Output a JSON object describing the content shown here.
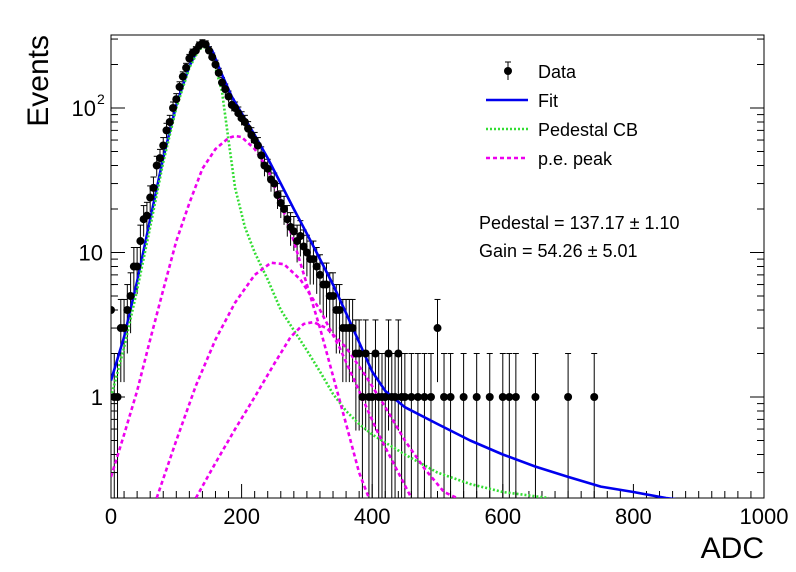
{
  "chart_data": {
    "type": "scatter",
    "title": "",
    "xlabel": "ADC",
    "ylabel": "Events",
    "xlim": [
      0,
      1000
    ],
    "ylim": [
      0.2,
      320
    ],
    "yscale": "log",
    "grid": false,
    "legend_position": "top-right",
    "x_ticks": [
      "0",
      "200",
      "400",
      "600",
      "800",
      "1000"
    ],
    "y_ticks": [
      {
        "value": 1,
        "label": "1"
      },
      {
        "value": 10,
        "label": "10"
      },
      {
        "value": 100,
        "label": "10",
        "sup": "2"
      }
    ],
    "legend": [
      {
        "label": "Data",
        "style": "marker",
        "color": "#000000"
      },
      {
        "label": "Fit",
        "style": "solid",
        "color": "#0000ee"
      },
      {
        "label": "Pedestal CB",
        "style": "dotted",
        "color": "#33dd33"
      },
      {
        "label": "p.e. peak",
        "style": "dashed",
        "color": "#ee00ee"
      }
    ],
    "annotations": [
      "Pedestal = 137.17 ± 1.10",
      "Gain = 54.26 ± 5.01"
    ],
    "fit_params": {
      "pedestal": 137.17,
      "pedestal_err": 1.1,
      "gain": 54.26,
      "gain_err": 5.01
    },
    "series": [
      {
        "name": "Data",
        "points": [
          [
            0,
            4
          ],
          [
            5,
            1
          ],
          [
            10,
            1
          ],
          [
            15,
            3
          ],
          [
            20,
            3
          ],
          [
            25,
            4
          ],
          [
            30,
            5
          ],
          [
            35,
            8
          ],
          [
            40,
            8
          ],
          [
            45,
            12
          ],
          [
            50,
            17
          ],
          [
            55,
            18
          ],
          [
            60,
            24
          ],
          [
            65,
            28
          ],
          [
            70,
            40
          ],
          [
            75,
            45
          ],
          [
            80,
            55
          ],
          [
            85,
            70
          ],
          [
            90,
            80
          ],
          [
            95,
            100
          ],
          [
            100,
            115
          ],
          [
            105,
            140
          ],
          [
            110,
            165
          ],
          [
            115,
            190
          ],
          [
            120,
            220
          ],
          [
            125,
            240
          ],
          [
            130,
            250
          ],
          [
            135,
            270
          ],
          [
            140,
            280
          ],
          [
            145,
            275
          ],
          [
            150,
            250
          ],
          [
            155,
            225
          ],
          [
            160,
            200
          ],
          [
            165,
            175
          ],
          [
            170,
            150
          ],
          [
            175,
            135
          ],
          [
            180,
            120
          ],
          [
            185,
            105
          ],
          [
            190,
            100
          ],
          [
            195,
            92
          ],
          [
            200,
            85
          ],
          [
            205,
            80
          ],
          [
            210,
            72
          ],
          [
            215,
            65
          ],
          [
            220,
            60
          ],
          [
            225,
            55
          ],
          [
            230,
            47
          ],
          [
            235,
            40
          ],
          [
            240,
            38
          ],
          [
            245,
            32
          ],
          [
            250,
            30
          ],
          [
            255,
            25
          ],
          [
            260,
            22
          ],
          [
            265,
            20
          ],
          [
            270,
            17
          ],
          [
            275,
            15
          ],
          [
            280,
            14
          ],
          [
            285,
            12
          ],
          [
            290,
            13
          ],
          [
            295,
            11
          ],
          [
            300,
            10
          ],
          [
            305,
            9
          ],
          [
            310,
            9
          ],
          [
            315,
            8
          ],
          [
            320,
            7
          ],
          [
            325,
            6
          ],
          [
            330,
            6
          ],
          [
            335,
            5
          ],
          [
            340,
            5
          ],
          [
            345,
            4
          ],
          [
            350,
            4
          ],
          [
            355,
            3
          ],
          [
            360,
            3
          ],
          [
            365,
            3
          ],
          [
            370,
            3
          ],
          [
            375,
            2
          ],
          [
            380,
            2
          ],
          [
            385,
            1
          ],
          [
            390,
            2
          ],
          [
            395,
            1
          ],
          [
            400,
            1
          ],
          [
            405,
            2
          ],
          [
            410,
            1
          ],
          [
            415,
            1
          ],
          [
            420,
            1
          ],
          [
            425,
            2
          ],
          [
            430,
            1
          ],
          [
            435,
            1
          ],
          [
            440,
            2
          ],
          [
            445,
            1
          ],
          [
            450,
            1
          ],
          [
            460,
            1
          ],
          [
            470,
            1
          ],
          [
            480,
            1
          ],
          [
            490,
            1
          ],
          [
            500,
            3
          ],
          [
            510,
            1
          ],
          [
            520,
            1
          ],
          [
            540,
            1
          ],
          [
            560,
            1
          ],
          [
            580,
            1
          ],
          [
            600,
            1
          ],
          [
            610,
            1
          ],
          [
            620,
            1
          ],
          [
            650,
            1
          ],
          [
            700,
            1
          ],
          [
            740,
            1
          ]
        ]
      },
      {
        "name": "Fit",
        "points": [
          [
            0,
            1.3
          ],
          [
            20,
            2.6
          ],
          [
            40,
            6.3
          ],
          [
            60,
            17
          ],
          [
            80,
            45
          ],
          [
            100,
            105
          ],
          [
            120,
            195
          ],
          [
            135,
            265
          ],
          [
            145,
            280
          ],
          [
            155,
            250
          ],
          [
            170,
            170
          ],
          [
            185,
            120
          ],
          [
            200,
            92
          ],
          [
            220,
            65
          ],
          [
            240,
            45
          ],
          [
            260,
            30
          ],
          [
            280,
            20
          ],
          [
            300,
            13.5
          ],
          [
            320,
            9
          ],
          [
            340,
            6
          ],
          [
            360,
            3.8
          ],
          [
            380,
            2.4
          ],
          [
            400,
            1.5
          ],
          [
            420,
            1.1
          ],
          [
            450,
            0.85
          ],
          [
            500,
            0.65
          ],
          [
            550,
            0.5
          ],
          [
            600,
            0.4
          ],
          [
            650,
            0.33
          ],
          [
            700,
            0.28
          ],
          [
            750,
            0.24
          ],
          [
            800,
            0.22
          ],
          [
            850,
            0.2
          ],
          [
            870,
            0.195
          ]
        ]
      },
      {
        "name": "Pedestal CB",
        "points": [
          [
            0,
            1.0
          ],
          [
            20,
            2.2
          ],
          [
            40,
            5.5
          ],
          [
            60,
            15
          ],
          [
            80,
            42
          ],
          [
            100,
            100
          ],
          [
            120,
            190
          ],
          [
            135,
            255
          ],
          [
            145,
            265
          ],
          [
            155,
            230
          ],
          [
            170,
            130
          ],
          [
            180,
            60
          ],
          [
            190,
            28
          ],
          [
            205,
            15
          ],
          [
            220,
            10
          ],
          [
            240,
            6.5
          ],
          [
            260,
            4
          ],
          [
            280,
            2.9
          ],
          [
            300,
            2.1
          ],
          [
            320,
            1.5
          ],
          [
            340,
            1.05
          ],
          [
            360,
            0.8
          ],
          [
            380,
            0.65
          ],
          [
            400,
            0.55
          ],
          [
            450,
            0.4
          ],
          [
            500,
            0.3
          ],
          [
            550,
            0.25
          ],
          [
            600,
            0.22
          ],
          [
            670,
            0.2
          ]
        ]
      },
      {
        "name": "p.e. peak 1",
        "points": [
          [
            0,
            0.28
          ],
          [
            20,
            0.55
          ],
          [
            40,
            1.1
          ],
          [
            60,
            2.5
          ],
          [
            80,
            5.5
          ],
          [
            100,
            12
          ],
          [
            120,
            22
          ],
          [
            140,
            38
          ],
          [
            160,
            52
          ],
          [
            180,
            62
          ],
          [
            190,
            64
          ],
          [
            200,
            63
          ],
          [
            220,
            52
          ],
          [
            240,
            38
          ],
          [
            260,
            22
          ],
          [
            280,
            12
          ],
          [
            300,
            6
          ],
          [
            320,
            3
          ],
          [
            340,
            1.4
          ],
          [
            360,
            0.65
          ],
          [
            380,
            0.3
          ],
          [
            395,
            0.2
          ]
        ]
      },
      {
        "name": "p.e. peak 2",
        "points": [
          [
            70,
            0.2
          ],
          [
            100,
            0.5
          ],
          [
            130,
            1.2
          ],
          [
            160,
            2.5
          ],
          [
            190,
            4.5
          ],
          [
            220,
            7
          ],
          [
            245,
            8.5
          ],
          [
            265,
            8.3
          ],
          [
            290,
            6.5
          ],
          [
            320,
            4
          ],
          [
            350,
            2.2
          ],
          [
            380,
            1.1
          ],
          [
            410,
            0.55
          ],
          [
            440,
            0.3
          ],
          [
            460,
            0.2
          ]
        ]
      },
      {
        "name": "p.e. peak 3",
        "points": [
          [
            130,
            0.2
          ],
          [
            160,
            0.35
          ],
          [
            190,
            0.6
          ],
          [
            220,
            1.0
          ],
          [
            250,
            1.7
          ],
          [
            275,
            2.6
          ],
          [
            295,
            3.2
          ],
          [
            310,
            3.3
          ],
          [
            330,
            3.0
          ],
          [
            360,
            2.2
          ],
          [
            390,
            1.4
          ],
          [
            420,
            0.85
          ],
          [
            450,
            0.5
          ],
          [
            480,
            0.32
          ],
          [
            510,
            0.22
          ],
          [
            530,
            0.2
          ]
        ]
      }
    ]
  }
}
